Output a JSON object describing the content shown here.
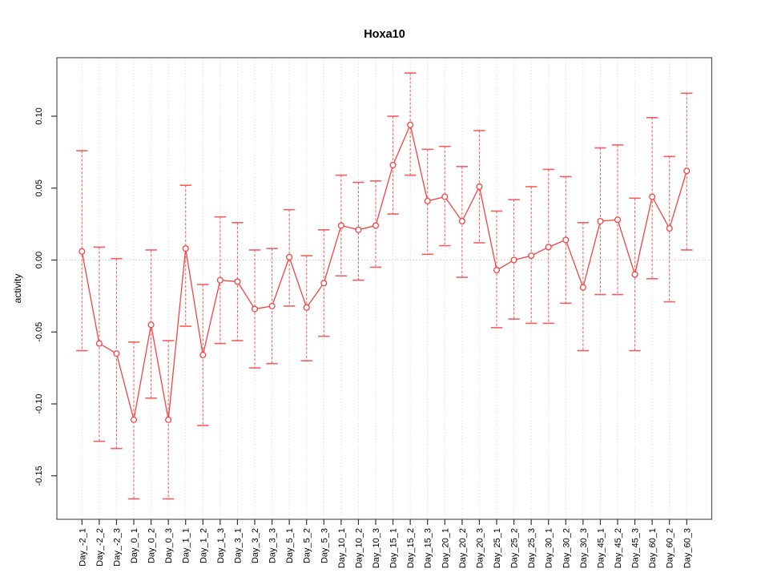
{
  "chart_data": {
    "type": "line",
    "subtype": "points-with-error-bars",
    "title": "Hoxa10",
    "xlabel": "",
    "ylabel": "activity",
    "legend": "none",
    "grid": "dotted vertical gridline at every category; dotted horizontal line at y=0 only",
    "ylim": [
      -0.18,
      0.14
    ],
    "yticks": [
      "0.10",
      "0.05",
      "0.00",
      "-0.05",
      "-0.10",
      "-0.15"
    ],
    "ytick_values": [
      0.1,
      0.05,
      0.0,
      -0.05,
      -0.1,
      -0.15
    ],
    "tick_label_orientation": "perpendicular (rotated 90°, R las=2 style)",
    "marker": "open-circle",
    "error_bar_style": "dashed vertical line with solid horizontal caps",
    "categories": [
      "Day_-2_1",
      "Day_-2_2",
      "Day_-2_3",
      "Day_0_1",
      "Day_0_2",
      "Day_0_3",
      "Day_1_1",
      "Day_1_2",
      "Day_1_3",
      "Day_3_1",
      "Day_3_2",
      "Day_3_3",
      "Day_5_1",
      "Day_5_2",
      "Day_5_3",
      "Day_10_1",
      "Day_10_2",
      "Day_10_3",
      "Day_15_1",
      "Day_15_2",
      "Day_15_3",
      "Day_20_1",
      "Day_20_2",
      "Day_20_3",
      "Day_25_1",
      "Day_25_2",
      "Day_25_3",
      "Day_30_1",
      "Day_30_2",
      "Day_30_3",
      "Day_45_1",
      "Day_45_2",
      "Day_45_3",
      "Day_60_1",
      "Day_60_2",
      "Day_60_3"
    ],
    "series": [
      {
        "name": "activity",
        "values": [
          0.006,
          -0.058,
          -0.065,
          -0.111,
          -0.045,
          -0.111,
          0.008,
          -0.066,
          -0.014,
          -0.015,
          -0.034,
          -0.032,
          0.002,
          -0.033,
          -0.016,
          0.024,
          0.021,
          0.024,
          0.066,
          0.094,
          0.041,
          0.044,
          0.027,
          0.051,
          -0.007,
          0.0,
          0.003,
          0.009,
          0.014,
          -0.019,
          0.027,
          0.028,
          -0.01,
          0.044,
          0.022,
          0.062
        ],
        "upper": [
          0.076,
          0.009,
          0.001,
          -0.057,
          0.007,
          -0.056,
          0.052,
          -0.017,
          0.03,
          0.026,
          0.007,
          0.008,
          0.035,
          0.003,
          0.021,
          0.059,
          0.054,
          0.055,
          0.1,
          0.13,
          0.077,
          0.079,
          0.065,
          0.09,
          0.034,
          0.042,
          0.051,
          0.063,
          0.058,
          0.026,
          0.078,
          0.08,
          0.043,
          0.099,
          0.072,
          0.116
        ],
        "lower": [
          -0.063,
          -0.126,
          -0.131,
          -0.166,
          -0.096,
          -0.166,
          -0.046,
          -0.115,
          -0.058,
          -0.056,
          -0.075,
          -0.072,
          -0.032,
          -0.07,
          -0.053,
          -0.011,
          -0.014,
          -0.005,
          0.032,
          0.059,
          0.004,
          0.01,
          -0.012,
          0.012,
          -0.047,
          -0.041,
          -0.044,
          -0.044,
          -0.03,
          -0.063,
          -0.024,
          -0.024,
          -0.063,
          -0.013,
          -0.029,
          0.007
        ]
      }
    ],
    "colors": {
      "series": "#f24444",
      "error_bar": "#f45555",
      "gridline": "#d9d9d9",
      "zero_line": "#c9c9c9",
      "axis_box": "#555555",
      "tick": "#333333",
      "text": "#000000",
      "background": "#ffffff"
    }
  }
}
